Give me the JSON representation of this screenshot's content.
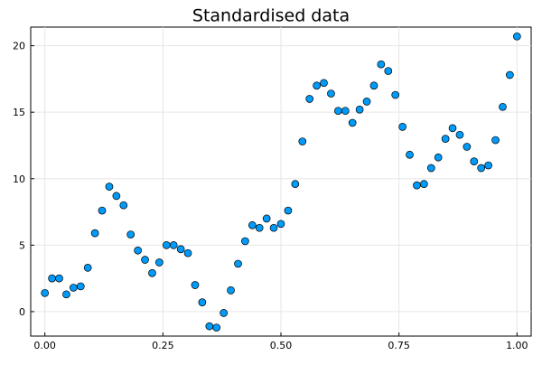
{
  "chart_data": {
    "type": "scatter",
    "title": "Standardised data",
    "x": [
      0,
      0.0152,
      0.0303,
      0.0455,
      0.0606,
      0.0758,
      0.0909,
      0.1061,
      0.1212,
      0.1364,
      0.1515,
      0.1667,
      0.1818,
      0.197,
      0.2121,
      0.2273,
      0.2424,
      0.2576,
      0.2727,
      0.2879,
      0.303,
      0.3182,
      0.3333,
      0.3485,
      0.3636,
      0.3788,
      0.3939,
      0.4091,
      0.4242,
      0.4394,
      0.4545,
      0.4697,
      0.4848,
      0.5,
      0.5152,
      0.5303,
      0.5455,
      0.5606,
      0.5758,
      0.5909,
      0.6061,
      0.6212,
      0.6364,
      0.6515,
      0.6667,
      0.6818,
      0.697,
      0.7121,
      0.7273,
      0.7424,
      0.7576,
      0.7727,
      0.7879,
      0.803,
      0.8182,
      0.8333,
      0.8485,
      0.8636,
      0.8788,
      0.8939,
      0.9091,
      0.9242,
      0.9394,
      0.9545,
      0.9697,
      0.9848,
      1
    ],
    "values": [
      1.4,
      2.5,
      2.5,
      1.3,
      1.8,
      1.9,
      3.3,
      5.9,
      7.6,
      9.4,
      8.7,
      8.0,
      5.8,
      4.6,
      3.9,
      2.9,
      3.7,
      5.0,
      5.0,
      4.7,
      4.4,
      2.0,
      0.7,
      -1.1,
      -1.2,
      -0.1,
      1.6,
      3.6,
      5.3,
      6.5,
      6.3,
      7.0,
      6.3,
      6.6,
      7.6,
      9.6,
      12.8,
      16.0,
      17.0,
      17.2,
      16.4,
      15.1,
      15.1,
      14.2,
      15.2,
      15.8,
      17.0,
      18.6,
      18.1,
      16.3,
      13.9,
      11.8,
      9.5,
      9.6,
      10.8,
      11.6,
      13.0,
      13.8,
      13.3,
      12.4,
      11.3,
      10.8,
      11.0,
      12.9,
      15.4,
      17.8,
      20.7
    ],
    "color": "#009af9",
    "xlim": [
      -0.03,
      1.03
    ],
    "ylim": [
      -1.84,
      21.4
    ],
    "xticks": [
      {
        "value": 0,
        "label": "0.00"
      },
      {
        "value": 0.25,
        "label": "0.25"
      },
      {
        "value": 0.5,
        "label": "0.50"
      },
      {
        "value": 0.75,
        "label": "0.75"
      },
      {
        "value": 1,
        "label": "1.00"
      }
    ],
    "yticks": [
      0,
      5,
      10,
      15,
      20
    ],
    "grid": true
  }
}
